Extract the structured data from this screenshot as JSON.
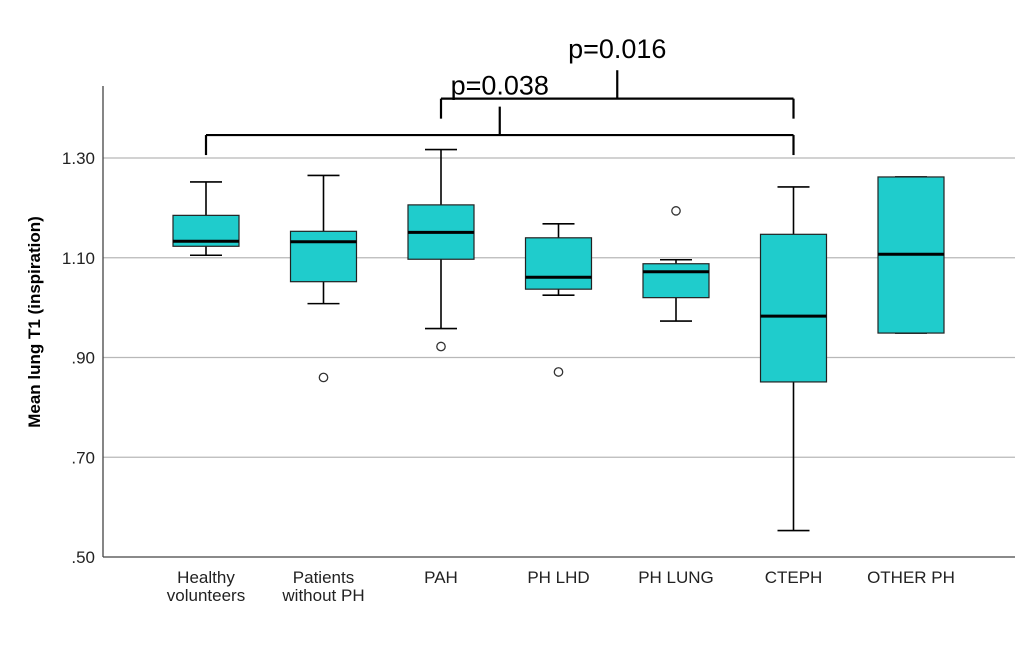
{
  "chart_data": {
    "type": "boxplot",
    "ylabel": "Mean lung T1 (inspiration)",
    "xlabel": "",
    "ylim": [
      0.5,
      1.44
    ],
    "yticks": [
      0.5,
      0.7,
      0.9,
      1.1,
      1.3
    ],
    "ytick_labels": [
      ".50",
      ".70",
      ".90",
      "1.10",
      "1.30"
    ],
    "grid": true,
    "box_color": "#1fcccc",
    "categories": [
      {
        "label": [
          "Healthy",
          "volunteers"
        ],
        "whisker_low": 1.105,
        "q1": 1.123,
        "median": 1.133,
        "q3": 1.185,
        "whisker_high": 1.252,
        "outliers": []
      },
      {
        "label": [
          "Patients",
          "without PH"
        ],
        "whisker_low": 1.008,
        "q1": 1.052,
        "median": 1.132,
        "q3": 1.153,
        "whisker_high": 1.265,
        "outliers": [
          0.86
        ]
      },
      {
        "label": [
          "PAH"
        ],
        "whisker_low": 0.958,
        "q1": 1.097,
        "median": 1.151,
        "q3": 1.206,
        "whisker_high": 1.317,
        "outliers": [
          0.922
        ]
      },
      {
        "label": [
          "PH LHD"
        ],
        "whisker_low": 1.025,
        "q1": 1.037,
        "median": 1.061,
        "q3": 1.14,
        "whisker_high": 1.168,
        "outliers": [
          0.871
        ]
      },
      {
        "label": [
          "PH LUNG"
        ],
        "whisker_low": 0.973,
        "q1": 1.02,
        "median": 1.072,
        "q3": 1.088,
        "whisker_high": 1.096,
        "outliers": [
          1.194
        ]
      },
      {
        "label": [
          "CTEPH"
        ],
        "whisker_low": 0.553,
        "q1": 0.851,
        "median": 0.983,
        "q3": 1.147,
        "whisker_high": 1.242,
        "outliers": []
      },
      {
        "label": [
          "OTHER PH"
        ],
        "whisker_low": 0.949,
        "q1": 0.949,
        "median": 1.107,
        "q3": 1.262,
        "whisker_high": 1.262,
        "outliers": []
      }
    ],
    "annotations": [
      {
        "text": "p=0.038",
        "from_category": 0,
        "to_category": 5,
        "level": 1.346,
        "stem_top": 1.403
      },
      {
        "text": "p=0.016",
        "from_category": 2,
        "to_category": 5,
        "level": 1.419,
        "stem_top": 1.476
      }
    ]
  }
}
